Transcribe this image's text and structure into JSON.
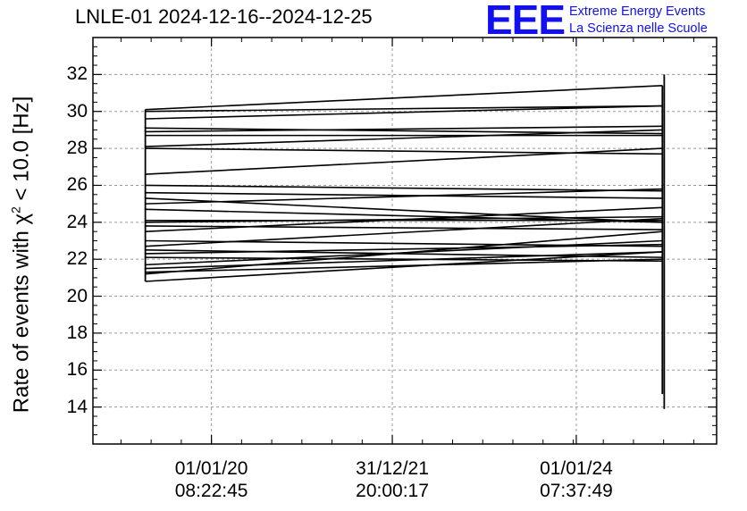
{
  "header": {
    "title": "LNLE-01 2024-12-16--2024-12-25",
    "logo_mark": "EEE",
    "logo_line1": "Extreme Energy Events",
    "logo_line2": "La Scienza nelle Scuole"
  },
  "colors": {
    "logo": "#1010f0",
    "data": "#000000",
    "grid": "#9a9a9a"
  },
  "chart_data": {
    "type": "line",
    "title": "LNLE-01 2024-12-16--2024-12-25",
    "ylabel": "Rate of events with χ² < 10.0 [Hz]",
    "ylabel_parts": {
      "before": "Rate of events with χ",
      "sup": "2",
      "after": " < 10.0 [Hz]"
    },
    "xlabel": "",
    "ylim": [
      12,
      34
    ],
    "yticks": [
      14,
      16,
      18,
      20,
      22,
      24,
      26,
      28,
      30,
      32
    ],
    "xlim": [
      0,
      1
    ],
    "xticks": [
      {
        "x": 0.19,
        "line1": "01/01/20",
        "line2": "08:22:45"
      },
      {
        "x": 0.48,
        "line1": "31/12/21",
        "line2": "20:00:17"
      },
      {
        "x": 0.775,
        "line1": "01/01/24",
        "line2": "07:37:49"
      }
    ],
    "grid": true,
    "segments": [
      [
        0.084,
        30.1,
        0.913,
        31.4
      ],
      [
        0.084,
        30.0,
        0.913,
        30.3
      ],
      [
        0.084,
        29.6,
        0.913,
        30.3
      ],
      [
        0.084,
        29.1,
        0.913,
        28.8
      ],
      [
        0.084,
        28.9,
        0.913,
        29.2
      ],
      [
        0.084,
        28.7,
        0.913,
        28.7
      ],
      [
        0.084,
        28.1,
        0.913,
        29.0
      ],
      [
        0.084,
        26.6,
        0.913,
        28.0
      ],
      [
        0.084,
        28.0,
        0.913,
        27.7
      ],
      [
        0.084,
        26.0,
        0.913,
        25.7
      ],
      [
        0.084,
        25.6,
        0.913,
        25.3
      ],
      [
        0.084,
        25.3,
        0.913,
        24.0
      ],
      [
        0.084,
        25.0,
        0.913,
        25.8
      ],
      [
        0.084,
        24.7,
        0.913,
        24.0
      ],
      [
        0.084,
        24.1,
        0.913,
        24.1
      ],
      [
        0.084,
        24.0,
        0.913,
        24.3
      ],
      [
        0.084,
        23.8,
        0.913,
        23.6
      ],
      [
        0.084,
        23.5,
        0.913,
        24.8
      ],
      [
        0.084,
        23.0,
        0.913,
        22.7
      ],
      [
        0.084,
        22.7,
        0.913,
        24.2
      ],
      [
        0.084,
        22.5,
        0.913,
        22.1
      ],
      [
        0.084,
        22.3,
        0.913,
        22.8
      ],
      [
        0.084,
        21.7,
        0.913,
        23.0
      ],
      [
        0.084,
        21.5,
        0.913,
        22.4
      ],
      [
        0.084,
        21.3,
        0.913,
        22.0
      ],
      [
        0.084,
        21.2,
        0.913,
        23.5
      ],
      [
        0.084,
        20.8,
        0.913,
        22.4
      ],
      [
        0.084,
        22.1,
        0.913,
        21.9
      ]
    ],
    "verticals": [
      {
        "x": 0.084,
        "y0": 20.8,
        "y1": 30.1
      },
      {
        "x": 0.913,
        "y0": 14.7,
        "y1": 31.4
      },
      {
        "x": 0.916,
        "y0": 13.9,
        "y1": 32.0
      }
    ]
  }
}
